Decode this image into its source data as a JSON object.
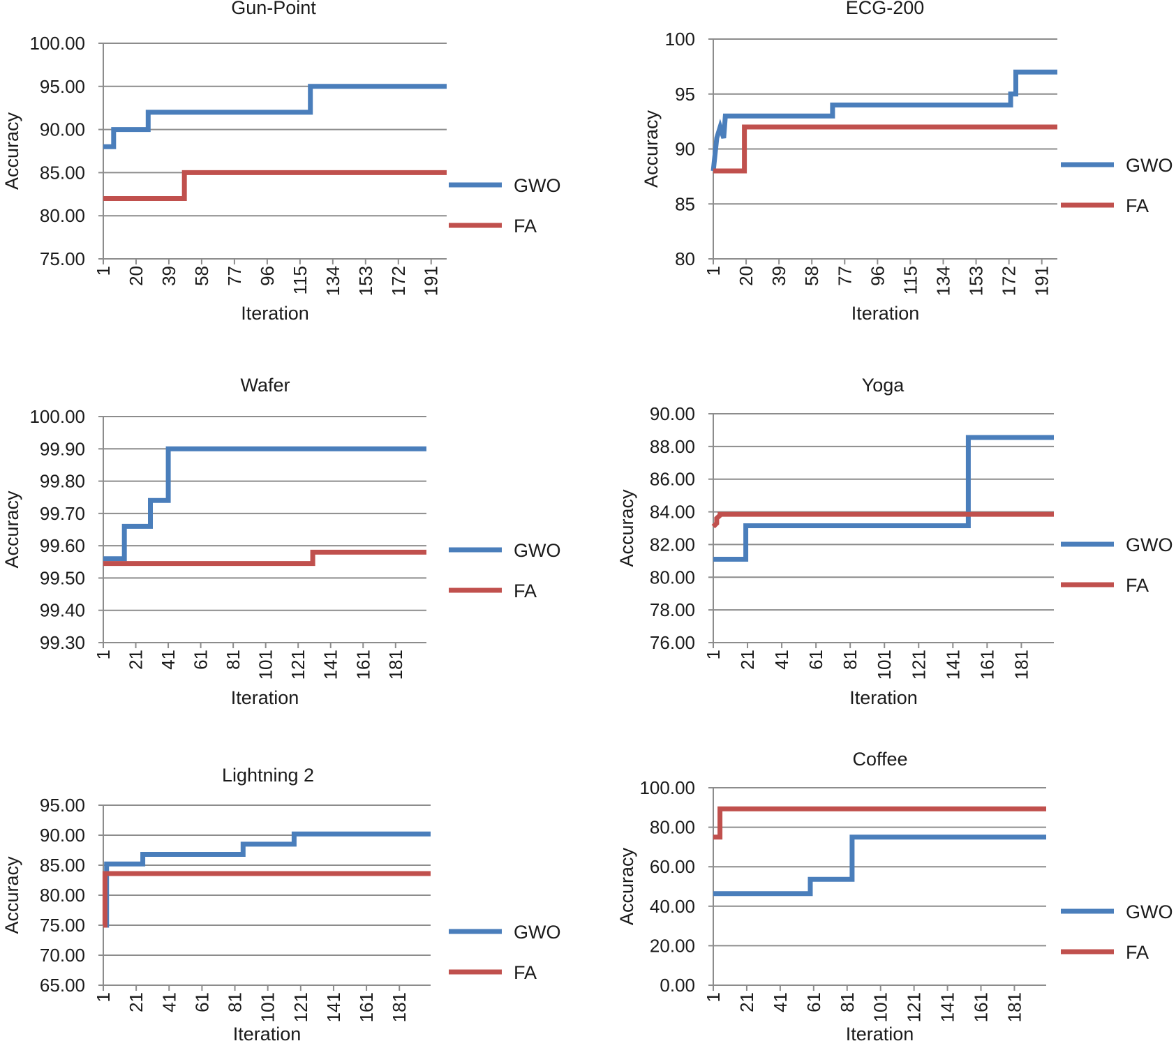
{
  "colors": {
    "gwo": "#4a7ebb",
    "fa": "#c0504d",
    "grid": "#8c8c8c",
    "axis": "#8c8c8c"
  },
  "legend": {
    "gwo": "GWO",
    "fa": "FA"
  },
  "chart_data": [
    {
      "type": "line",
      "title": "Gun-Point",
      "xlabel": "Iteration",
      "ylabel": "Accuracy",
      "ylim": [
        75,
        100
      ],
      "yticks": [
        75,
        80,
        85,
        90,
        95,
        100
      ],
      "ytick_labels": [
        "75.00",
        "80.00",
        "85.00",
        "90.00",
        "95.00",
        "100.00"
      ],
      "xlim": [
        1,
        200
      ],
      "xticks": [
        1,
        20,
        39,
        58,
        77,
        96,
        115,
        134,
        153,
        172,
        191
      ],
      "legend_position": "right",
      "series": [
        {
          "name": "GWO",
          "x": [
            1,
            7,
            7,
            27,
            27,
            62,
            62,
            121,
            121,
            200
          ],
          "y": [
            88,
            88,
            90,
            90,
            92,
            92,
            92,
            92,
            95,
            95
          ]
        },
        {
          "name": "FA",
          "x": [
            1,
            48,
            48,
            200
          ],
          "y": [
            82,
            82,
            85,
            85
          ]
        }
      ]
    },
    {
      "type": "line",
      "title": "ECG-200",
      "xlabel": "Iteration",
      "ylabel": "Accuracy",
      "ylim": [
        80,
        100
      ],
      "yticks": [
        80,
        85,
        90,
        95,
        100
      ],
      "ytick_labels": [
        "80",
        "85",
        "90",
        "95",
        "100"
      ],
      "xlim": [
        1,
        200
      ],
      "xticks": [
        1,
        20,
        39,
        58,
        77,
        96,
        115,
        134,
        153,
        172,
        191
      ],
      "legend_position": "right",
      "series": [
        {
          "name": "GWO",
          "x": [
            1,
            3,
            3,
            5,
            5,
            7,
            7,
            8,
            8,
            70,
            70,
            173,
            173,
            176,
            176,
            200
          ],
          "y": [
            88,
            91,
            91,
            92,
            92,
            91,
            91,
            93,
            93,
            93,
            94,
            94,
            95,
            95,
            97,
            97
          ]
        },
        {
          "name": "FA",
          "x": [
            1,
            19,
            19,
            200
          ],
          "y": [
            88,
            88,
            92,
            92
          ]
        }
      ]
    },
    {
      "type": "line",
      "title": "Wafer",
      "xlabel": "Iteration",
      "ylabel": "Accuracy",
      "ylim": [
        99.3,
        100
      ],
      "yticks": [
        99.3,
        99.4,
        99.5,
        99.6,
        99.7,
        99.8,
        99.9,
        100
      ],
      "ytick_labels": [
        "99.30",
        "99.40",
        "99.50",
        "99.60",
        "99.70",
        "99.80",
        "99.90",
        "100.00"
      ],
      "xlim": [
        1,
        200
      ],
      "xticks": [
        1,
        21,
        41,
        61,
        81,
        101,
        121,
        141,
        161,
        181
      ],
      "legend_position": "right",
      "series": [
        {
          "name": "GWO",
          "x": [
            1,
            14,
            14,
            30,
            30,
            41,
            41,
            200
          ],
          "y": [
            99.56,
            99.56,
            99.66,
            99.66,
            99.74,
            99.74,
            99.9,
            99.9
          ]
        },
        {
          "name": "FA",
          "x": [
            1,
            130,
            130,
            200
          ],
          "y": [
            99.545,
            99.545,
            99.58,
            99.58
          ]
        }
      ]
    },
    {
      "type": "line",
      "title": "Yoga",
      "xlabel": "Iteration",
      "ylabel": "Accuracy",
      "ylim": [
        76,
        90
      ],
      "yticks": [
        76,
        78,
        80,
        82,
        84,
        86,
        88,
        90
      ],
      "ytick_labels": [
        "76.00",
        "78.00",
        "80.00",
        "82.00",
        "84.00",
        "86.00",
        "88.00",
        "90.00"
      ],
      "xlim": [
        1,
        200
      ],
      "xticks": [
        1,
        21,
        41,
        61,
        81,
        101,
        121,
        141,
        161,
        181
      ],
      "legend_position": "right",
      "series": [
        {
          "name": "GWO",
          "x": [
            1,
            20,
            20,
            150,
            150,
            200
          ],
          "y": [
            81.1,
            81.1,
            83.15,
            83.15,
            88.55,
            88.55
          ]
        },
        {
          "name": "FA",
          "x": [
            1,
            3,
            3,
            5,
            5,
            200
          ],
          "y": [
            83.1,
            83.3,
            83.6,
            83.8,
            83.85,
            83.85
          ]
        }
      ]
    },
    {
      "type": "line",
      "title": "Lightning 2",
      "xlabel": "Iteration",
      "ylabel": "Accuracy",
      "ylim": [
        65,
        95
      ],
      "yticks": [
        65,
        70,
        75,
        80,
        85,
        90,
        95
      ],
      "ytick_labels": [
        "65.00",
        "70.00",
        "75.00",
        "80.00",
        "85.00",
        "90.00",
        "95.00"
      ],
      "xlim": [
        1,
        200
      ],
      "xticks": [
        1,
        21,
        41,
        61,
        81,
        101,
        121,
        141,
        161,
        181
      ],
      "legend_position": "right",
      "series": [
        {
          "name": "GWO",
          "x": [
            1,
            3,
            3,
            25,
            25,
            86,
            86,
            117,
            117,
            200
          ],
          "y": [
            75,
            75,
            85.2,
            85.2,
            86.8,
            86.8,
            88.5,
            88.5,
            90.2,
            90.2
          ]
        },
        {
          "name": "FA",
          "x": [
            1,
            2,
            2,
            200
          ],
          "y": [
            75,
            75,
            83.6,
            83.6
          ]
        }
      ]
    },
    {
      "type": "line",
      "title": "Coffee",
      "xlabel": "Iteration",
      "ylabel": "Accuracy",
      "ylim": [
        0,
        100
      ],
      "yticks": [
        0,
        20,
        40,
        60,
        80,
        100
      ],
      "ytick_labels": [
        "0.00",
        "20.00",
        "40.00",
        "60.00",
        "80.00",
        "100.00"
      ],
      "xlim": [
        1,
        200
      ],
      "xticks": [
        1,
        21,
        41,
        61,
        81,
        101,
        121,
        141,
        161,
        181
      ],
      "legend_position": "right",
      "series": [
        {
          "name": "GWO",
          "x": [
            1,
            59,
            59,
            84,
            84,
            200
          ],
          "y": [
            46.4,
            46.4,
            53.6,
            53.6,
            75,
            75
          ]
        },
        {
          "name": "FA",
          "x": [
            1,
            5,
            5,
            200
          ],
          "y": [
            75,
            75,
            89.3,
            89.3
          ]
        }
      ]
    }
  ]
}
